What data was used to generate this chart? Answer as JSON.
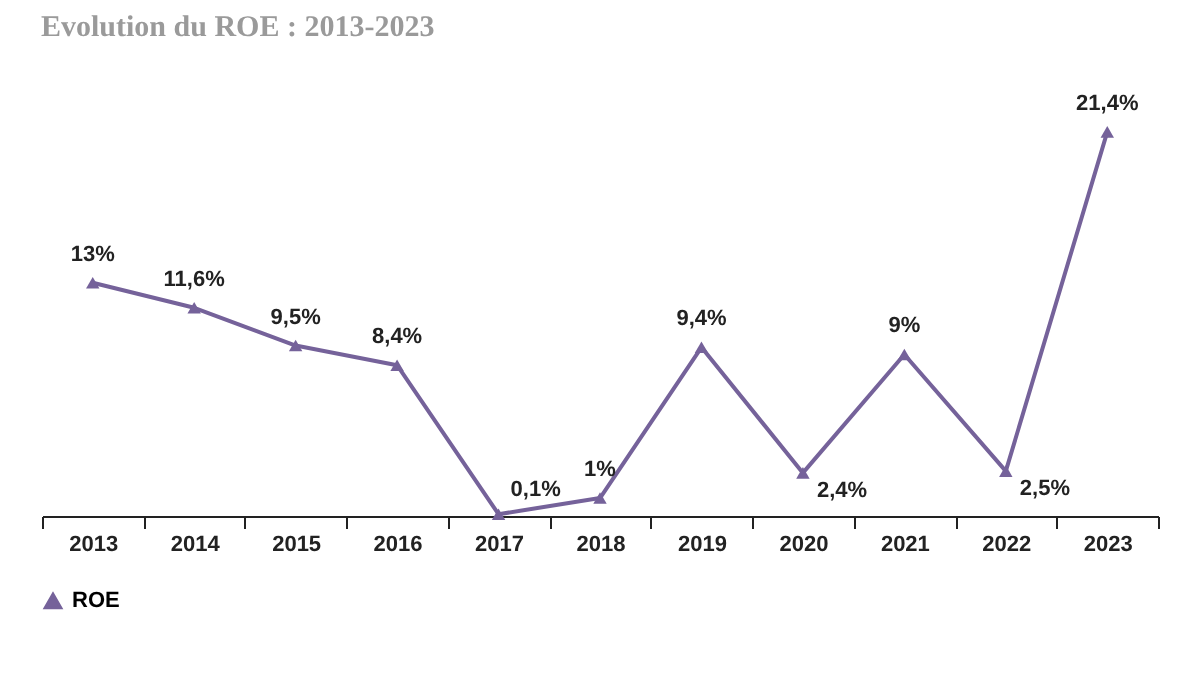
{
  "chart_data": {
    "type": "line",
    "title": "Evolution du ROE : 2013-2023",
    "categories": [
      "2013",
      "2014",
      "2015",
      "2016",
      "2017",
      "2018",
      "2019",
      "2020",
      "2021",
      "2022",
      "2023"
    ],
    "series": [
      {
        "name": "ROE",
        "color": "#75629a",
        "values": [
          13,
          11.6,
          9.5,
          8.4,
          0.1,
          1,
          9.4,
          2.4,
          9,
          2.5,
          21.4
        ],
        "value_labels": [
          "13%",
          "11,6%",
          "9,5%",
          "8,4%",
          "0,1%",
          "1%",
          "9,4%",
          "2,4%",
          "9%",
          "2,5%",
          "21,4%"
        ]
      }
    ],
    "marker": "triangle",
    "legend": "bottom",
    "grid": false,
    "tick_labels": "x"
  }
}
